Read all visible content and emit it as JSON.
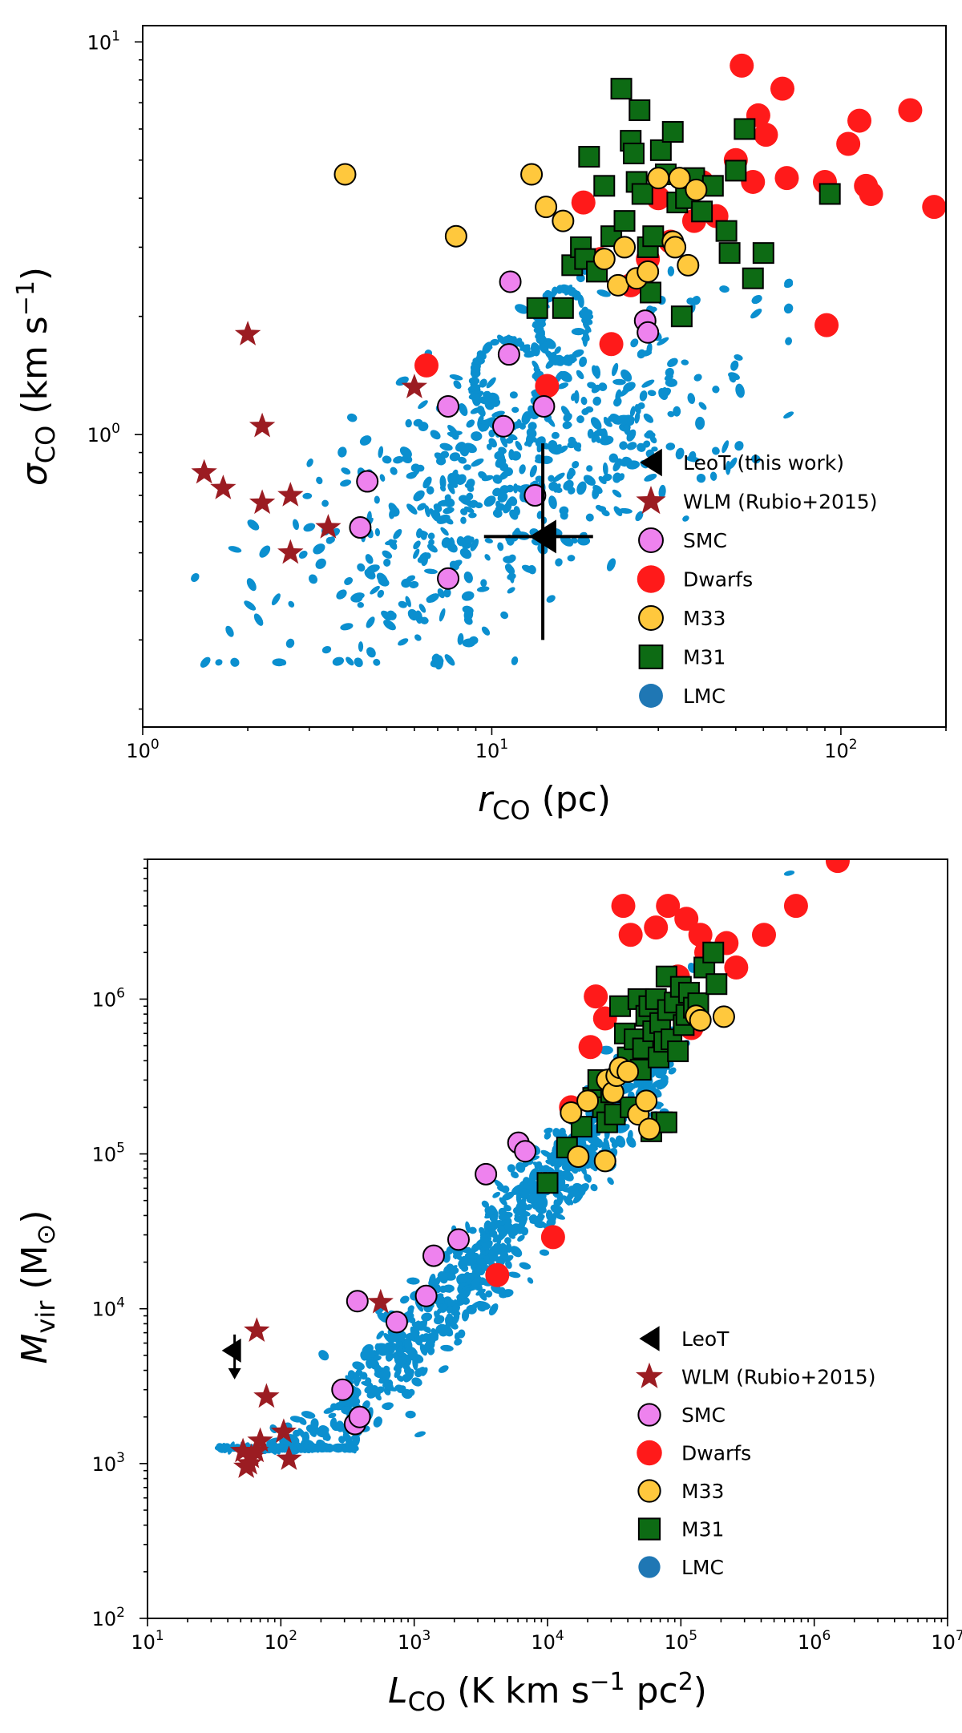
{
  "figure": "two-panel log-log scatter of molecular cloud properties",
  "colors": {
    "leot": "#000000",
    "wlm": "#9b1c22",
    "smc": "#ee82ee",
    "dwarfs": "#ff1a1a",
    "m33": "#ffc83d",
    "m31": "#0d6b14",
    "lmc": "#0b8fcf",
    "lmc_legend": "#1f77b4"
  },
  "chart_data": [
    {
      "type": "scatter",
      "id": "top",
      "xlabel": "r_CO (pc)",
      "ylabel": "σ_CO (km s^-1)",
      "xscale": "log",
      "yscale": "log",
      "xlim": [
        1,
        200
      ],
      "ylim": [
        0.18,
        11
      ],
      "xticks": [
        {
          "v": 1,
          "m": "10",
          "e": "0"
        },
        {
          "v": 10,
          "m": "10",
          "e": "1"
        },
        {
          "v": 100,
          "m": "10",
          "e": "2"
        }
      ],
      "yticks": [
        {
          "v": 1,
          "m": "10",
          "e": "0"
        },
        {
          "v": 10,
          "m": "10",
          "e": "1"
        }
      ],
      "legend_location": "lower-right",
      "legend": [
        "LeoT (this work)",
        "WLM (Rubio+2015)",
        "SMC",
        "Dwarfs",
        "M33",
        "M31",
        "LMC"
      ],
      "series": {
        "LeoT": {
          "x": [
            14
          ],
          "y": [
            0.55
          ],
          "xerr": [
            9.5,
            19.5
          ],
          "yerr": [
            0.3,
            0.95
          ]
        },
        "WLM": [
          [
            2.0,
            1.8
          ],
          [
            1.5,
            0.8
          ],
          [
            1.7,
            0.73
          ],
          [
            2.2,
            1.05
          ],
          [
            2.2,
            0.67
          ],
          [
            2.65,
            0.7
          ],
          [
            2.65,
            0.5
          ],
          [
            3.4,
            0.58
          ],
          [
            6.0,
            1.32
          ]
        ],
        "SMC": [
          [
            4.2,
            0.58
          ],
          [
            4.4,
            0.76
          ],
          [
            7.5,
            1.18
          ],
          [
            7.5,
            0.43
          ],
          [
            11.2,
            1.6
          ],
          [
            11.3,
            2.45
          ],
          [
            10.8,
            1.05
          ],
          [
            13.3,
            0.7
          ],
          [
            14.1,
            1.18
          ],
          [
            27.5,
            1.95
          ],
          [
            28.0,
            1.82
          ]
        ],
        "Dwarfs": [
          [
            6.5,
            1.5
          ],
          [
            14.4,
            1.33
          ],
          [
            18.3,
            3.9
          ],
          [
            20.5,
            2.8
          ],
          [
            22.0,
            1.7
          ],
          [
            25.0,
            2.4
          ],
          [
            28.0,
            2.8
          ],
          [
            30.0,
            4.0
          ],
          [
            32.5,
            3.1
          ],
          [
            38.0,
            3.5
          ],
          [
            40.0,
            4.4
          ],
          [
            44.0,
            3.6
          ],
          [
            50.0,
            5.0
          ],
          [
            52.0,
            8.7
          ],
          [
            56.0,
            4.4
          ],
          [
            58.0,
            6.5
          ],
          [
            61.0,
            5.8
          ],
          [
            68.0,
            7.6
          ],
          [
            70.0,
            4.5
          ],
          [
            90.0,
            4.4
          ],
          [
            91.0,
            1.9
          ],
          [
            105.0,
            5.5
          ],
          [
            113.0,
            6.3
          ],
          [
            118.0,
            4.3
          ],
          [
            122.0,
            4.1
          ],
          [
            158.0,
            6.7
          ],
          [
            185.0,
            3.8
          ]
        ],
        "M33": [
          [
            3.8,
            4.6
          ],
          [
            7.9,
            3.2
          ],
          [
            13.0,
            4.6
          ],
          [
            14.3,
            3.8
          ],
          [
            16.0,
            3.5
          ],
          [
            21.0,
            2.8
          ],
          [
            23.0,
            2.4
          ],
          [
            24.0,
            3.0
          ],
          [
            26.0,
            2.5
          ],
          [
            28.0,
            2.6
          ],
          [
            30.0,
            4.5
          ],
          [
            33.0,
            3.1
          ],
          [
            33.5,
            3.0
          ],
          [
            34.5,
            4.5
          ],
          [
            36.5,
            2.7
          ],
          [
            38.5,
            4.2
          ]
        ],
        "M31": [
          [
            13.5,
            2.1
          ],
          [
            16.0,
            2.1
          ],
          [
            17.0,
            2.7
          ],
          [
            18.0,
            3.0
          ],
          [
            18.5,
            2.8
          ],
          [
            19.0,
            5.1
          ],
          [
            20.0,
            2.6
          ],
          [
            21.0,
            4.3
          ],
          [
            22.0,
            3.2
          ],
          [
            23.5,
            7.6
          ],
          [
            24.0,
            3.5
          ],
          [
            25.0,
            5.6
          ],
          [
            25.5,
            5.2
          ],
          [
            26.0,
            4.4
          ],
          [
            26.5,
            6.7
          ],
          [
            27.0,
            4.1
          ],
          [
            28.0,
            3.0
          ],
          [
            28.5,
            2.3
          ],
          [
            29.0,
            3.2
          ],
          [
            30.5,
            5.3
          ],
          [
            31.5,
            4.6
          ],
          [
            33.0,
            5.9
          ],
          [
            34.0,
            3.9
          ],
          [
            35.0,
            2.0
          ],
          [
            36.0,
            4.0
          ],
          [
            38.0,
            4.5
          ],
          [
            40.0,
            3.7
          ],
          [
            43.0,
            4.3
          ],
          [
            47.0,
            3.3
          ],
          [
            48.0,
            2.9
          ],
          [
            50.0,
            4.7
          ],
          [
            53.0,
            6.0
          ],
          [
            56.0,
            2.5
          ],
          [
            60.0,
            2.9
          ],
          [
            93.0,
            4.1
          ]
        ],
        "LMC": "hundreds of small blue points across r≈1.5–65 pc, σ≈0.27–8 km/s"
      }
    },
    {
      "type": "scatter",
      "id": "bottom",
      "xlabel": "L_CO (K km s^-1 pc^2)",
      "ylabel": "M_vir (M_⊙)",
      "xscale": "log",
      "yscale": "log",
      "xlim": [
        10,
        10000000
      ],
      "ylim": [
        100,
        8000000
      ],
      "xticks": [
        {
          "v": 10,
          "m": "10",
          "e": "1"
        },
        {
          "v": 100,
          "m": "10",
          "e": "2"
        },
        {
          "v": 1000,
          "m": "10",
          "e": "3"
        },
        {
          "v": 10000,
          "m": "10",
          "e": "4"
        },
        {
          "v": 100000,
          "m": "10",
          "e": "5"
        },
        {
          "v": 1000000,
          "m": "10",
          "e": "6"
        },
        {
          "v": 10000000,
          "m": "10",
          "e": "7"
        }
      ],
      "yticks": [
        {
          "v": 100,
          "m": "10",
          "e": "2"
        },
        {
          "v": 1000,
          "m": "10",
          "e": "3"
        },
        {
          "v": 10000,
          "m": "10",
          "e": "4"
        },
        {
          "v": 100000,
          "m": "10",
          "e": "5"
        },
        {
          "v": 1000000,
          "m": "10",
          "e": "6"
        }
      ],
      "legend_location": "lower-right",
      "legend": [
        "LeoT",
        "WLM (Rubio+2015)",
        "SMC",
        "Dwarfs",
        "M33",
        "M31",
        "LMC"
      ],
      "series": {
        "LeoT": {
          "x": [
            45
          ],
          "y": [
            5000
          ],
          "note": "upper limits"
        },
        "WLM": [
          [
            66,
            7200
          ],
          [
            78,
            2700
          ],
          [
            52,
            1200
          ],
          [
            55,
            950
          ],
          [
            58,
            1000
          ],
          [
            60,
            1100
          ],
          [
            65,
            1200
          ],
          [
            70,
            1400
          ],
          [
            105,
            1600
          ],
          [
            115,
            1070
          ],
          [
            560,
            11000
          ]
        ],
        "SMC": [
          [
            290,
            3000
          ],
          [
            360,
            1800
          ],
          [
            390,
            2000
          ],
          [
            375,
            11200
          ],
          [
            740,
            8200
          ],
          [
            1230,
            12100
          ],
          [
            1400,
            22000
          ],
          [
            2150,
            28000
          ],
          [
            3450,
            74000
          ],
          [
            6050,
            118000
          ],
          [
            6800,
            104000
          ]
        ],
        "Dwarfs": [
          [
            4200,
            16500
          ],
          [
            11000,
            29000
          ],
          [
            15000,
            200000
          ],
          [
            21000,
            490000
          ],
          [
            23000,
            1040000
          ],
          [
            27000,
            750000
          ],
          [
            37000,
            4000000
          ],
          [
            42000,
            2600000
          ],
          [
            65000,
            2900000
          ],
          [
            80000,
            4000000
          ],
          [
            95000,
            1400000
          ],
          [
            110000,
            3300000
          ],
          [
            120000,
            650000
          ],
          [
            140000,
            2600000
          ],
          [
            155000,
            2000000
          ],
          [
            220000,
            2300000
          ],
          [
            260000,
            1600000
          ],
          [
            420000,
            2600000
          ],
          [
            730000,
            4000000
          ],
          [
            1500000,
            7800000
          ]
        ],
        "M33": [
          [
            15000,
            185000
          ],
          [
            17000,
            96000
          ],
          [
            20000,
            220000
          ],
          [
            27000,
            90000
          ],
          [
            28000,
            300000
          ],
          [
            31000,
            250000
          ],
          [
            33000,
            320000
          ],
          [
            35000,
            360000
          ],
          [
            40000,
            340000
          ],
          [
            48000,
            180000
          ],
          [
            55000,
            220000
          ],
          [
            58000,
            145000
          ],
          [
            130000,
            780000
          ],
          [
            140000,
            730000
          ],
          [
            210000,
            770000
          ]
        ],
        "M31": [
          [
            10000,
            65000
          ],
          [
            14000,
            110000
          ],
          [
            18000,
            150000
          ],
          [
            22000,
            230000
          ],
          [
            24000,
            300000
          ],
          [
            26000,
            200000
          ],
          [
            28000,
            160000
          ],
          [
            30000,
            250000
          ],
          [
            32000,
            180000
          ],
          [
            35000,
            900000
          ],
          [
            38000,
            600000
          ],
          [
            40000,
            420000
          ],
          [
            42000,
            200000
          ],
          [
            45000,
            550000
          ],
          [
            48000,
            1000000
          ],
          [
            50000,
            350000
          ],
          [
            52000,
            480000
          ],
          [
            55000,
            780000
          ],
          [
            58000,
            900000
          ],
          [
            60000,
            140000
          ],
          [
            62000,
            620000
          ],
          [
            65000,
            1000000
          ],
          [
            68000,
            420000
          ],
          [
            70000,
            700000
          ],
          [
            72000,
            160000
          ],
          [
            75000,
            530000
          ],
          [
            78000,
            1400000
          ],
          [
            80000,
            850000
          ],
          [
            85000,
            550000
          ],
          [
            90000,
            950000
          ],
          [
            95000,
            460000
          ],
          [
            100000,
            1200000
          ],
          [
            105000,
            680000
          ],
          [
            110000,
            790000
          ],
          [
            115000,
            1100000
          ],
          [
            125000,
            880000
          ],
          [
            135000,
            940000
          ],
          [
            150000,
            1600000
          ],
          [
            175000,
            2000000
          ],
          [
            185000,
            1250000
          ],
          [
            78000,
            160000
          ]
        ],
        "LMC": "hundreds of small blue points along the relation L_CO≈40–8e4, M_vir≈2e3–4e5"
      }
    }
  ]
}
